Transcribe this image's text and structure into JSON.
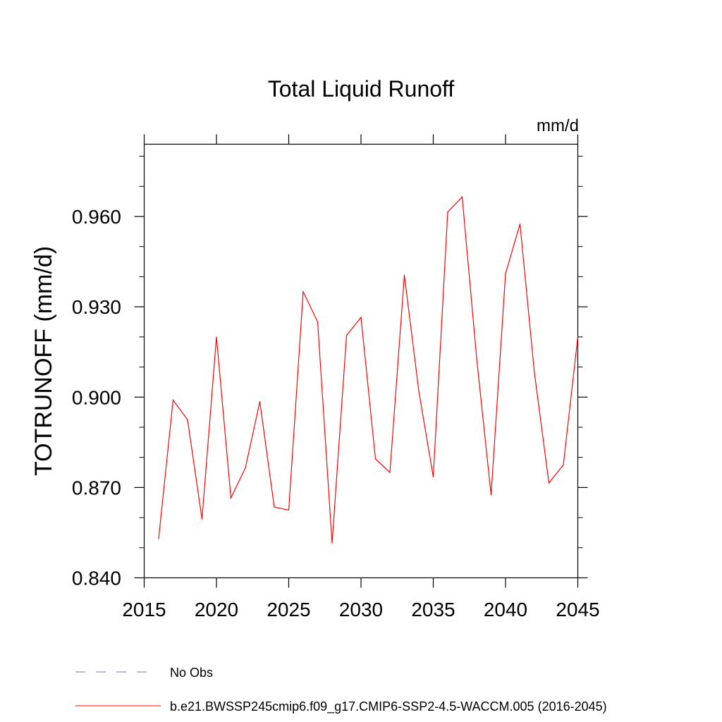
{
  "chart_data": {
    "type": "line",
    "title": "Total Liquid Runoff",
    "units": "mm/d",
    "ylabel": "TOTRUNOFF  (mm/d)",
    "xlabel": "",
    "xlim": [
      2015,
      2045
    ],
    "ylim": [
      0.84,
      0.984
    ],
    "x_ticks": [
      2015,
      2020,
      2025,
      2030,
      2035,
      2040,
      2045
    ],
    "x_tick_labels": [
      "2015",
      "2020",
      "2025",
      "2030",
      "2035",
      "2040",
      "2045"
    ],
    "y_ticks": [
      0.84,
      0.87,
      0.9,
      0.93,
      0.96
    ],
    "y_tick_labels": [
      "0.840",
      "0.870",
      "0.900",
      "0.930",
      "0.960"
    ],
    "grid": false,
    "legend_position": "bottom",
    "series": [
      {
        "name": "b.e21.BWSSP245cmip6.f09_g17.CMIP6-SSP2-4.5-WACCM.005 (2016-2045)",
        "color": "#ff0000",
        "style": "solid",
        "x": [
          2016,
          2017,
          2018,
          2019,
          2020,
          2021,
          2022,
          2023,
          2024,
          2025,
          2026,
          2027,
          2028,
          2029,
          2030,
          2031,
          2032,
          2033,
          2034,
          2035,
          2036,
          2037,
          2038,
          2039,
          2040,
          2041,
          2042,
          2043,
          2044,
          2045
        ],
        "values": [
          0.853,
          0.899,
          0.8925,
          0.8595,
          0.92,
          0.8665,
          0.8765,
          0.8985,
          0.8635,
          0.8625,
          0.935,
          0.925,
          0.8515,
          0.9205,
          0.9265,
          0.8795,
          0.875,
          0.9405,
          0.902,
          0.8735,
          0.9615,
          0.9665,
          0.913,
          0.8675,
          0.941,
          0.9575,
          0.908,
          0.8715,
          0.8775,
          0.92
        ]
      }
    ],
    "legend": [
      {
        "label": "No Obs",
        "color": "#7f6fb8",
        "style": "dashed"
      },
      {
        "label": "b.e21.BWSSP245cmip6.f09_g17.CMIP6-SSP2-4.5-WACCM.005 (2016-2045)",
        "color": "#ff0000",
        "style": "solid"
      }
    ]
  }
}
